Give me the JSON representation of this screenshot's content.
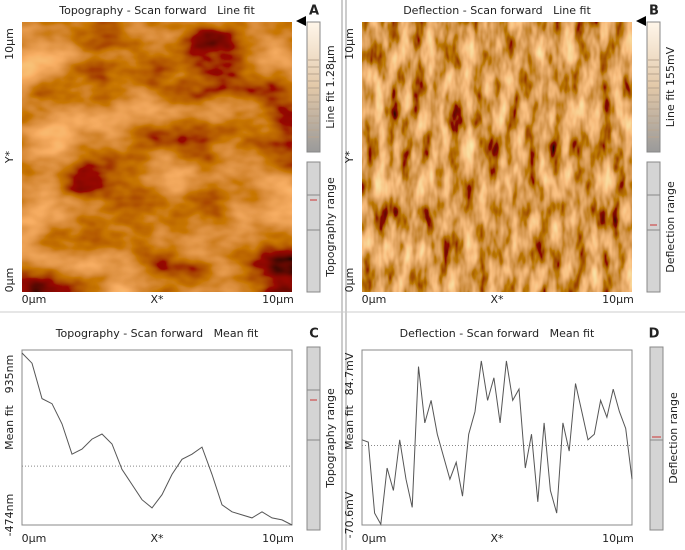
{
  "panels": [
    {
      "letter": "A",
      "title": "Topography - Scan forward   Line fit",
      "y_labels": [
        "10µm",
        "Y*",
        "0µm"
      ],
      "x_labels": [
        "0µm",
        "X*",
        "10µm"
      ],
      "colorbar_label": "Line fit 1.28µm",
      "range_label": "Topography range"
    },
    {
      "letter": "B",
      "title": "Deflection - Scan forward   Line fit",
      "y_labels": [
        "10µm",
        "Y*",
        "0µm"
      ],
      "x_labels": [
        "0µm",
        "X*",
        "10µm"
      ],
      "colorbar_label": "Line fit 155mV",
      "range_label": "Deflection range"
    },
    {
      "letter": "C",
      "title": "Topography - Scan forward   Mean fit",
      "y_labels": [
        "935nm",
        "Mean fit",
        "-474nm"
      ],
      "x_labels": [
        "0µm",
        "X*",
        "10µm"
      ],
      "range_label": "Topography range",
      "profile": {
        "ylim": [
          -474,
          935
        ],
        "mean_line": 0,
        "values": [
          911,
          829,
          544,
          503,
          340,
          96,
          137,
          218,
          259,
          178,
          -26,
          -148,
          -270,
          -336,
          -230,
          -67,
          55,
          96,
          153,
          -67,
          -311,
          -368,
          -393,
          -417,
          -368,
          -417,
          -433,
          -474
        ]
      }
    },
    {
      "letter": "D",
      "title": "Deflection - Scan forward   Mean fit",
      "y_labels": [
        "84.7mV",
        "Mean fit",
        "-70.6mV"
      ],
      "x_labels": [
        "0µm",
        "X*",
        "10µm"
      ],
      "range_label": "Deflection range",
      "profile": {
        "ylim": [
          -70.6,
          84.7
        ],
        "mean_line": 0,
        "values": [
          5,
          3,
          -60,
          -70,
          -20,
          -40,
          5,
          -30,
          -55,
          70,
          20,
          40,
          10,
          -10,
          -30,
          -15,
          -45,
          10,
          30,
          75,
          40,
          60,
          20,
          75,
          40,
          50,
          -20,
          10,
          -50,
          20,
          -40,
          -60,
          20,
          -5,
          55,
          30,
          5,
          10,
          40,
          25,
          50,
          30,
          15,
          -30
        ]
      }
    }
  ]
}
